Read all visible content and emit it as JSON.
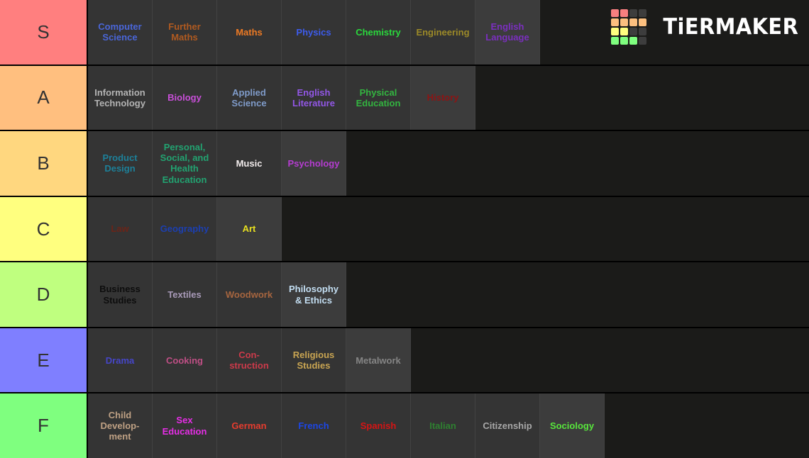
{
  "logo": {
    "text": "TiERMAKER",
    "grid_colors": [
      "#f87f7f",
      "#f87f7f",
      "#3d3d3d",
      "#3d3d3d",
      "#fcbf7f",
      "#fcbf7f",
      "#fcbf7f",
      "#fcbf7f",
      "#ffff7f",
      "#ffff7f",
      "#3d3d3d",
      "#3d3d3d",
      "#7fff7f",
      "#7fff7f",
      "#7fff7f",
      "#3d3d3d"
    ]
  },
  "colors": {
    "page_bg": "#000000",
    "row_bg": "#1b1b19",
    "tile_bg": "#343434",
    "tile_bg_light": "#3c3c3c",
    "tile_divider": "#424242",
    "tier_label_text": "#333333"
  },
  "tiers": [
    {
      "label": "S",
      "color": "#ff7f7f",
      "items": [
        {
          "name": "Computer\nScience",
          "color": "#4a66d9"
        },
        {
          "name": "Further\nMaths",
          "color": "#b05a20"
        },
        {
          "name": "Maths",
          "color": "#ed7a24"
        },
        {
          "name": "Physics",
          "color": "#3d5ced"
        },
        {
          "name": "Chemistry",
          "color": "#2ad93c"
        },
        {
          "name": "Engineering",
          "color": "#9c8a28"
        },
        {
          "name": "English\nLanguage",
          "color": "#7b2fbf",
          "light": true
        }
      ]
    },
    {
      "label": "A",
      "color": "#ffbf7f",
      "items": [
        {
          "name": "Information\nTechnology",
          "color": "#b3b3b3"
        },
        {
          "name": "Biology",
          "color": "#c94fd9"
        },
        {
          "name": "Applied\nScience",
          "color": "#7f9bc9"
        },
        {
          "name": "English\nLiterature",
          "color": "#9257e6"
        },
        {
          "name": "Physical\nEducation",
          "color": "#33b540"
        },
        {
          "name": "History",
          "color": "#8c1414",
          "light": true
        }
      ]
    },
    {
      "label": "B",
      "color": "#ffd77f",
      "items": [
        {
          "name": "Product\nDesign",
          "color": "#1d8099"
        },
        {
          "name": "Personal,\nSocial, and\nHealth\nEducation",
          "color": "#22a371"
        },
        {
          "name": "Music",
          "color": "#f2ecec"
        },
        {
          "name": "Psychology",
          "color": "#b53cd1",
          "light": true
        }
      ]
    },
    {
      "label": "C",
      "color": "#ffff7f",
      "items": [
        {
          "name": "Law",
          "color": "#6b2418"
        },
        {
          "name": "Geography",
          "color": "#1c3fb0"
        },
        {
          "name": "Art",
          "color": "#e8e01f",
          "light": true
        }
      ]
    },
    {
      "label": "D",
      "color": "#bfff7f",
      "items": [
        {
          "name": "Business\nStudies",
          "color": "#0d0d0d"
        },
        {
          "name": "Textiles",
          "color": "#a89ab8"
        },
        {
          "name": "Woodwork",
          "color": "#a6653f"
        },
        {
          "name": "Philosophy\n& Ethics",
          "color": "#c3def2",
          "light": true
        }
      ]
    },
    {
      "label": "E",
      "color": "#7f7fff",
      "items": [
        {
          "name": "Drama",
          "color": "#4646c8"
        },
        {
          "name": "Cooking",
          "color": "#bf4f85"
        },
        {
          "name": "Con-\nstruction",
          "color": "#cc3a4a"
        },
        {
          "name": "Religious\nStudies",
          "color": "#c9a552"
        },
        {
          "name": "Metalwork",
          "color": "#858585",
          "light": true
        }
      ]
    },
    {
      "label": "F",
      "color": "#7fff7f",
      "items": [
        {
          "name": "Child\nDevelop-\nment",
          "color": "#bfa184"
        },
        {
          "name": "Sex\nEducation",
          "color": "#e62ee6"
        },
        {
          "name": "German",
          "color": "#e63c2e"
        },
        {
          "name": "French",
          "color": "#1c46e6"
        },
        {
          "name": "Spanish",
          "color": "#d61414"
        },
        {
          "name": "Italian",
          "color": "#2e8030"
        },
        {
          "name": "Citizenship",
          "color": "#a8a8a8"
        },
        {
          "name": "Sociology",
          "color": "#58e63c",
          "light": true
        }
      ]
    }
  ]
}
